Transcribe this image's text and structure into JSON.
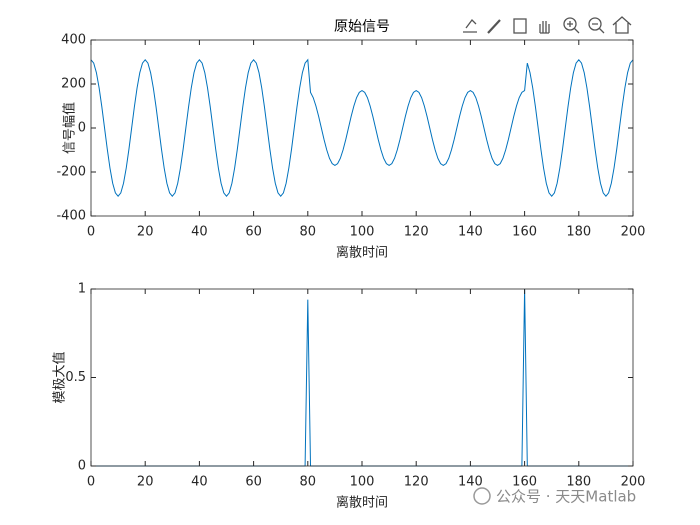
{
  "chart_data": [
    {
      "type": "line",
      "title": "原始信号",
      "x_label": "离散时间",
      "y_label": "信号幅值",
      "x": [
        0,
        1,
        2,
        3,
        4,
        5,
        6,
        7,
        8,
        9,
        10,
        11,
        12,
        13,
        14,
        15,
        16,
        17,
        18,
        19,
        20,
        21,
        22,
        23,
        24,
        25,
        26,
        27,
        28,
        29,
        30,
        31,
        32,
        33,
        34,
        35,
        36,
        37,
        38,
        39,
        40,
        41,
        42,
        43,
        44,
        45,
        46,
        47,
        48,
        49,
        50,
        51,
        52,
        53,
        54,
        55,
        56,
        57,
        58,
        59,
        60,
        61,
        62,
        63,
        64,
        65,
        66,
        67,
        68,
        69,
        70,
        71,
        72,
        73,
        74,
        75,
        76,
        77,
        78,
        79,
        80,
        81,
        82,
        83,
        84,
        85,
        86,
        87,
        88,
        89,
        90,
        91,
        92,
        93,
        94,
        95,
        96,
        97,
        98,
        99,
        100,
        101,
        102,
        103,
        104,
        105,
        106,
        107,
        108,
        109,
        110,
        111,
        112,
        113,
        114,
        115,
        116,
        117,
        118,
        119,
        120,
        121,
        122,
        123,
        124,
        125,
        126,
        127,
        128,
        129,
        130,
        131,
        132,
        133,
        134,
        135,
        136,
        137,
        138,
        139,
        140,
        141,
        142,
        143,
        144,
        145,
        146,
        147,
        148,
        149,
        150,
        151,
        152,
        153,
        154,
        155,
        156,
        157,
        158,
        159,
        160,
        161,
        162,
        163,
        164,
        165,
        166,
        167,
        168,
        169,
        170,
        171,
        172,
        173,
        174,
        175,
        176,
        177,
        178,
        179,
        180,
        181,
        182,
        183,
        184,
        185,
        186,
        187,
        188,
        189,
        190,
        191,
        192,
        193,
        194,
        195,
        196,
        197,
        198,
        199,
        200
      ],
      "values": [
        310,
        295,
        251,
        182,
        96,
        0,
        -96,
        -182,
        -251,
        -295,
        -310,
        -295,
        -251,
        -182,
        -96,
        0,
        96,
        182,
        251,
        295,
        310,
        295,
        251,
        182,
        96,
        0,
        -96,
        -182,
        -251,
        -295,
        -310,
        -295,
        -251,
        -182,
        -96,
        0,
        96,
        182,
        251,
        295,
        310,
        295,
        251,
        182,
        96,
        0,
        -96,
        -182,
        -251,
        -295,
        -310,
        -295,
        -251,
        -182,
        -96,
        0,
        96,
        182,
        251,
        295,
        310,
        295,
        251,
        182,
        96,
        0,
        -96,
        -182,
        -251,
        -295,
        -310,
        -295,
        -251,
        -182,
        -96,
        0,
        96,
        182,
        251,
        295,
        310,
        162,
        138,
        100,
        53,
        0,
        -53,
        -100,
        -138,
        -162,
        -170,
        -162,
        -138,
        -100,
        -53,
        0,
        53,
        100,
        138,
        162,
        170,
        162,
        138,
        100,
        53,
        0,
        -53,
        -100,
        -138,
        -162,
        -170,
        -162,
        -138,
        -100,
        -53,
        0,
        53,
        100,
        138,
        162,
        170,
        162,
        138,
        100,
        53,
        0,
        -53,
        -100,
        -138,
        -162,
        -170,
        -162,
        -138,
        -100,
        -53,
        0,
        53,
        100,
        138,
        162,
        170,
        162,
        138,
        100,
        53,
        0,
        -53,
        -100,
        -138,
        -162,
        -170,
        -162,
        -138,
        -100,
        -53,
        0,
        53,
        100,
        138,
        162,
        170,
        295,
        251,
        182,
        96,
        0,
        -96,
        -182,
        -251,
        -295,
        -310,
        -295,
        -251,
        -182,
        -96,
        0,
        96,
        182,
        251,
        295,
        310,
        295,
        251,
        182,
        96,
        0,
        -96,
        -182,
        -251,
        -295,
        -310,
        -295,
        -251,
        -182,
        -96,
        0,
        96,
        182,
        251,
        295,
        310
      ],
      "color": "#0072bd",
      "xlim": [
        0,
        200
      ],
      "ylim": [
        -400,
        400
      ],
      "xticks": [
        0,
        20,
        40,
        60,
        80,
        100,
        120,
        140,
        160,
        180,
        200
      ],
      "yticks": [
        -400,
        -200,
        0,
        200,
        400
      ]
    },
    {
      "type": "line",
      "x_label": "离散时间",
      "y_label": "模极大值",
      "x": [
        0,
        79,
        80,
        81,
        159,
        160,
        161,
        200
      ],
      "values": [
        0,
        0,
        0.94,
        0,
        0,
        1,
        0,
        0
      ],
      "color": "#0072bd",
      "xlim": [
        0,
        200
      ],
      "ylim": [
        0,
        1
      ],
      "xticks": [
        0,
        20,
        40,
        60,
        80,
        100,
        120,
        140,
        160,
        180,
        200
      ],
      "yticks": [
        0,
        0.5,
        1
      ]
    }
  ],
  "watermark": "公众号 · 天天Matlab"
}
